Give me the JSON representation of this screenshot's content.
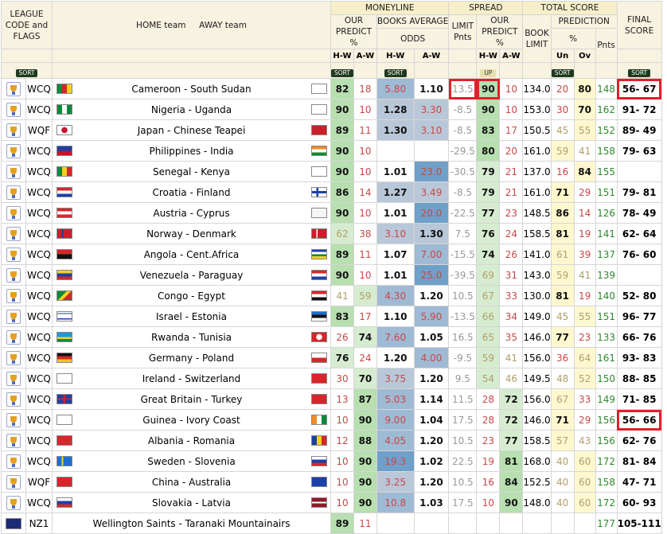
{
  "header": {
    "league_col": "LEAGUE CODE and FLAGS",
    "teams_col": "HOME team     AWAY team",
    "moneyline": "MONEYLINE",
    "spread": "SPREAD",
    "total_score": "TOTAL SCORE",
    "final_score": "FINAL SCORE",
    "our_predict": "OUR PREDICT %",
    "books_average": "BOOKS AVERAGE",
    "odds": "ODDS",
    "limit_pnts": "LIMIT Pnts",
    "book_limit": "BOOK LIMIT",
    "prediction": "PREDICTION",
    "pct": "%",
    "pnts": "Pnts",
    "hw": "H-W",
    "aw": "A-W",
    "un": "Un",
    "ov": "Ov",
    "sort": "SORT",
    "up": "UP"
  },
  "rows": [
    {
      "lg": "WCQ",
      "home": "Cameroon",
      "away": "South Sudan",
      "hflag": "cm",
      "aflag": "blank",
      "mh": "82",
      "ma": "18",
      "oh": "5.80",
      "oa": "1.10",
      "lim": "13.5",
      "sh": "90",
      "sa": "10",
      "bl": "134.0",
      "un": "20",
      "ov": "80",
      "pn": "148",
      "fs": "56- 67"
    },
    {
      "lg": "WCQ",
      "home": "Nigeria",
      "away": "Uganda",
      "hflag": "ng",
      "aflag": "blank",
      "mh": "90",
      "ma": "10",
      "oh": "1.28",
      "oa": "3.30",
      "lim": "-8.5",
      "sh": "90",
      "sa": "10",
      "bl": "153.0",
      "un": "30",
      "ov": "70",
      "pn": "162",
      "fs": "91- 72"
    },
    {
      "lg": "WQF",
      "home": "Japan",
      "away": "Chinese Teapei",
      "hflag": "jp",
      "aflag": "tw",
      "mh": "89",
      "ma": "11",
      "oh": "1.30",
      "oa": "3.10",
      "lim": "-8.5",
      "sh": "83",
      "sa": "17",
      "bl": "150.5",
      "un": "45",
      "ov": "55",
      "pn": "152",
      "fs": "89- 49"
    },
    {
      "lg": "WCQ",
      "home": "Philippines",
      "away": "India",
      "hflag": "ph",
      "aflag": "in",
      "mh": "90",
      "ma": "10",
      "oh": "",
      "oa": "",
      "lim": "-29.5",
      "sh": "80",
      "sa": "20",
      "bl": "161.0",
      "un": "59",
      "ov": "41",
      "pn": "158",
      "fs": "79- 63"
    },
    {
      "lg": "WCQ",
      "home": "Senegal",
      "away": "Kenya",
      "hflag": "sn",
      "aflag": "blank",
      "mh": "90",
      "ma": "10",
      "oh": "1.01",
      "oa": "23.0",
      "lim": "-30.5",
      "sh": "79",
      "sa": "21",
      "bl": "137.0",
      "un": "16",
      "ov": "84",
      "pn": "155",
      "fs": ""
    },
    {
      "lg": "WCQ",
      "home": "Croatia",
      "away": "Finland",
      "hflag": "hr",
      "aflag": "fi",
      "mh": "86",
      "ma": "14",
      "oh": "1.27",
      "oa": "3.49",
      "lim": "-8.5",
      "sh": "79",
      "sa": "21",
      "bl": "161.0",
      "un": "71",
      "ov": "29",
      "pn": "151",
      "fs": "79- 81"
    },
    {
      "lg": "WCQ",
      "home": "Austria",
      "away": "Cyprus",
      "hflag": "at",
      "aflag": "cy",
      "mh": "90",
      "ma": "10",
      "oh": "1.01",
      "oa": "20.0",
      "lim": "-22.5",
      "sh": "77",
      "sa": "23",
      "bl": "148.5",
      "un": "86",
      "ov": "14",
      "pn": "126",
      "fs": "78- 49"
    },
    {
      "lg": "WCQ",
      "home": "Norway",
      "away": "Denmark",
      "hflag": "no",
      "aflag": "dk",
      "mh": "62",
      "ma": "38",
      "oh": "3.10",
      "oa": "1.30",
      "lim": "7.5",
      "sh": "76",
      "sa": "24",
      "bl": "158.5",
      "un": "81",
      "ov": "19",
      "pn": "141",
      "fs": "62- 64"
    },
    {
      "lg": "WCQ",
      "home": "Angola",
      "away": "Cent.Africa",
      "hflag": "ao",
      "aflag": "cf",
      "mh": "89",
      "ma": "11",
      "oh": "1.07",
      "oa": "7.00",
      "lim": "-15.5",
      "sh": "74",
      "sa": "26",
      "bl": "141.0",
      "un": "61",
      "ov": "39",
      "pn": "137",
      "fs": "76- 60"
    },
    {
      "lg": "WCQ",
      "home": "Venezuela",
      "away": "Paraguay",
      "hflag": "ve",
      "aflag": "py",
      "mh": "90",
      "ma": "10",
      "oh": "1.01",
      "oa": "25.0",
      "lim": "-39.5",
      "sh": "69",
      "sa": "31",
      "bl": "143.0",
      "un": "59",
      "ov": "41",
      "pn": "139",
      "fs": ""
    },
    {
      "lg": "WCQ",
      "home": "Congo",
      "away": "Egypt",
      "hflag": "cg",
      "aflag": "eg",
      "mh": "41",
      "ma": "59",
      "oh": "4.30",
      "oa": "1.20",
      "lim": "10.5",
      "sh": "67",
      "sa": "33",
      "bl": "130.0",
      "un": "81",
      "ov": "19",
      "pn": "140",
      "fs": "52- 80"
    },
    {
      "lg": "WCQ",
      "home": "Israel",
      "away": "Estonia",
      "hflag": "il",
      "aflag": "ee",
      "mh": "83",
      "ma": "17",
      "oh": "1.10",
      "oa": "5.90",
      "lim": "-13.5",
      "sh": "66",
      "sa": "34",
      "bl": "149.0",
      "un": "45",
      "ov": "55",
      "pn": "151",
      "fs": "96- 77"
    },
    {
      "lg": "WCQ",
      "home": "Rwanda",
      "away": "Tunisia",
      "hflag": "rw",
      "aflag": "tn",
      "mh": "26",
      "ma": "74",
      "oh": "7.60",
      "oa": "1.05",
      "lim": "16.5",
      "sh": "65",
      "sa": "35",
      "bl": "146.0",
      "un": "77",
      "ov": "23",
      "pn": "133",
      "fs": "66- 76"
    },
    {
      "lg": "WCQ",
      "home": "Germany",
      "away": "Poland",
      "hflag": "de",
      "aflag": "pl",
      "mh": "76",
      "ma": "24",
      "oh": "1.20",
      "oa": "4.00",
      "lim": "-9.5",
      "sh": "59",
      "sa": "41",
      "bl": "156.0",
      "un": "36",
      "ov": "64",
      "pn": "161",
      "fs": "93- 83"
    },
    {
      "lg": "WCQ",
      "home": "Ireland",
      "away": "Switzerland",
      "hflag": "blank",
      "aflag": "ch",
      "mh": "30",
      "ma": "70",
      "oh": "3.75",
      "oa": "1.20",
      "lim": "9.5",
      "sh": "54",
      "sa": "46",
      "bl": "149.5",
      "un": "48",
      "ov": "52",
      "pn": "150",
      "fs": "88- 85"
    },
    {
      "lg": "WCQ",
      "home": "Great Britain",
      "away": "Turkey",
      "hflag": "gb",
      "aflag": "tr",
      "mh": "13",
      "ma": "87",
      "oh": "5.03",
      "oa": "1.14",
      "lim": "11.5",
      "sh": "28",
      "sa": "72",
      "bl": "156.0",
      "un": "67",
      "ov": "33",
      "pn": "149",
      "fs": "71- 85"
    },
    {
      "lg": "WCQ",
      "home": "Guinea",
      "away": "Ivory Coast",
      "hflag": "blank",
      "aflag": "ci",
      "mh": "10",
      "ma": "90",
      "oh": "9.00",
      "oa": "1.04",
      "lim": "17.5",
      "sh": "28",
      "sa": "72",
      "bl": "146.0",
      "un": "71",
      "ov": "29",
      "pn": "156",
      "fs": "56- 66"
    },
    {
      "lg": "WCQ",
      "home": "Albania",
      "away": "Romania",
      "hflag": "al",
      "aflag": "ro",
      "mh": "12",
      "ma": "88",
      "oh": "4.05",
      "oa": "1.20",
      "lim": "10.5",
      "sh": "23",
      "sa": "77",
      "bl": "158.5",
      "un": "57",
      "ov": "43",
      "pn": "156",
      "fs": "62- 76"
    },
    {
      "lg": "WCQ",
      "home": "Sweden",
      "away": "Slovenia",
      "hflag": "se",
      "aflag": "si",
      "mh": "10",
      "ma": "90",
      "oh": "19.3",
      "oa": "1.02",
      "lim": "22.5",
      "sh": "19",
      "sa": "81",
      "bl": "168.0",
      "un": "40",
      "ov": "60",
      "pn": "172",
      "fs": "81- 84"
    },
    {
      "lg": "WQF",
      "home": "China",
      "away": "Australia",
      "hflag": "cn",
      "aflag": "au",
      "mh": "10",
      "ma": "90",
      "oh": "3.25",
      "oa": "1.20",
      "lim": "10.5",
      "sh": "16",
      "sa": "84",
      "bl": "152.5",
      "un": "40",
      "ov": "60",
      "pn": "158",
      "fs": "47- 71"
    },
    {
      "lg": "WCQ",
      "home": "Slovakia",
      "away": "Latvia",
      "hflag": "sk",
      "aflag": "lv",
      "mh": "10",
      "ma": "90",
      "oh": "10.8",
      "oa": "1.03",
      "lim": "17.5",
      "sh": "10",
      "sa": "90",
      "bl": "148.0",
      "un": "40",
      "ov": "60",
      "pn": "172",
      "fs": "60- 93"
    },
    {
      "lg": "NZ1",
      "home": "Wellington Saints",
      "away": "Taranaki Mountainairs",
      "hflag": "",
      "aflag": "",
      "mh": "89",
      "ma": "11",
      "oh": "",
      "oa": "",
      "lim": "",
      "sh": "",
      "sa": "",
      "bl": "",
      "un": "",
      "ov": "",
      "pn": "177",
      "fs": "105-111"
    }
  ]
}
